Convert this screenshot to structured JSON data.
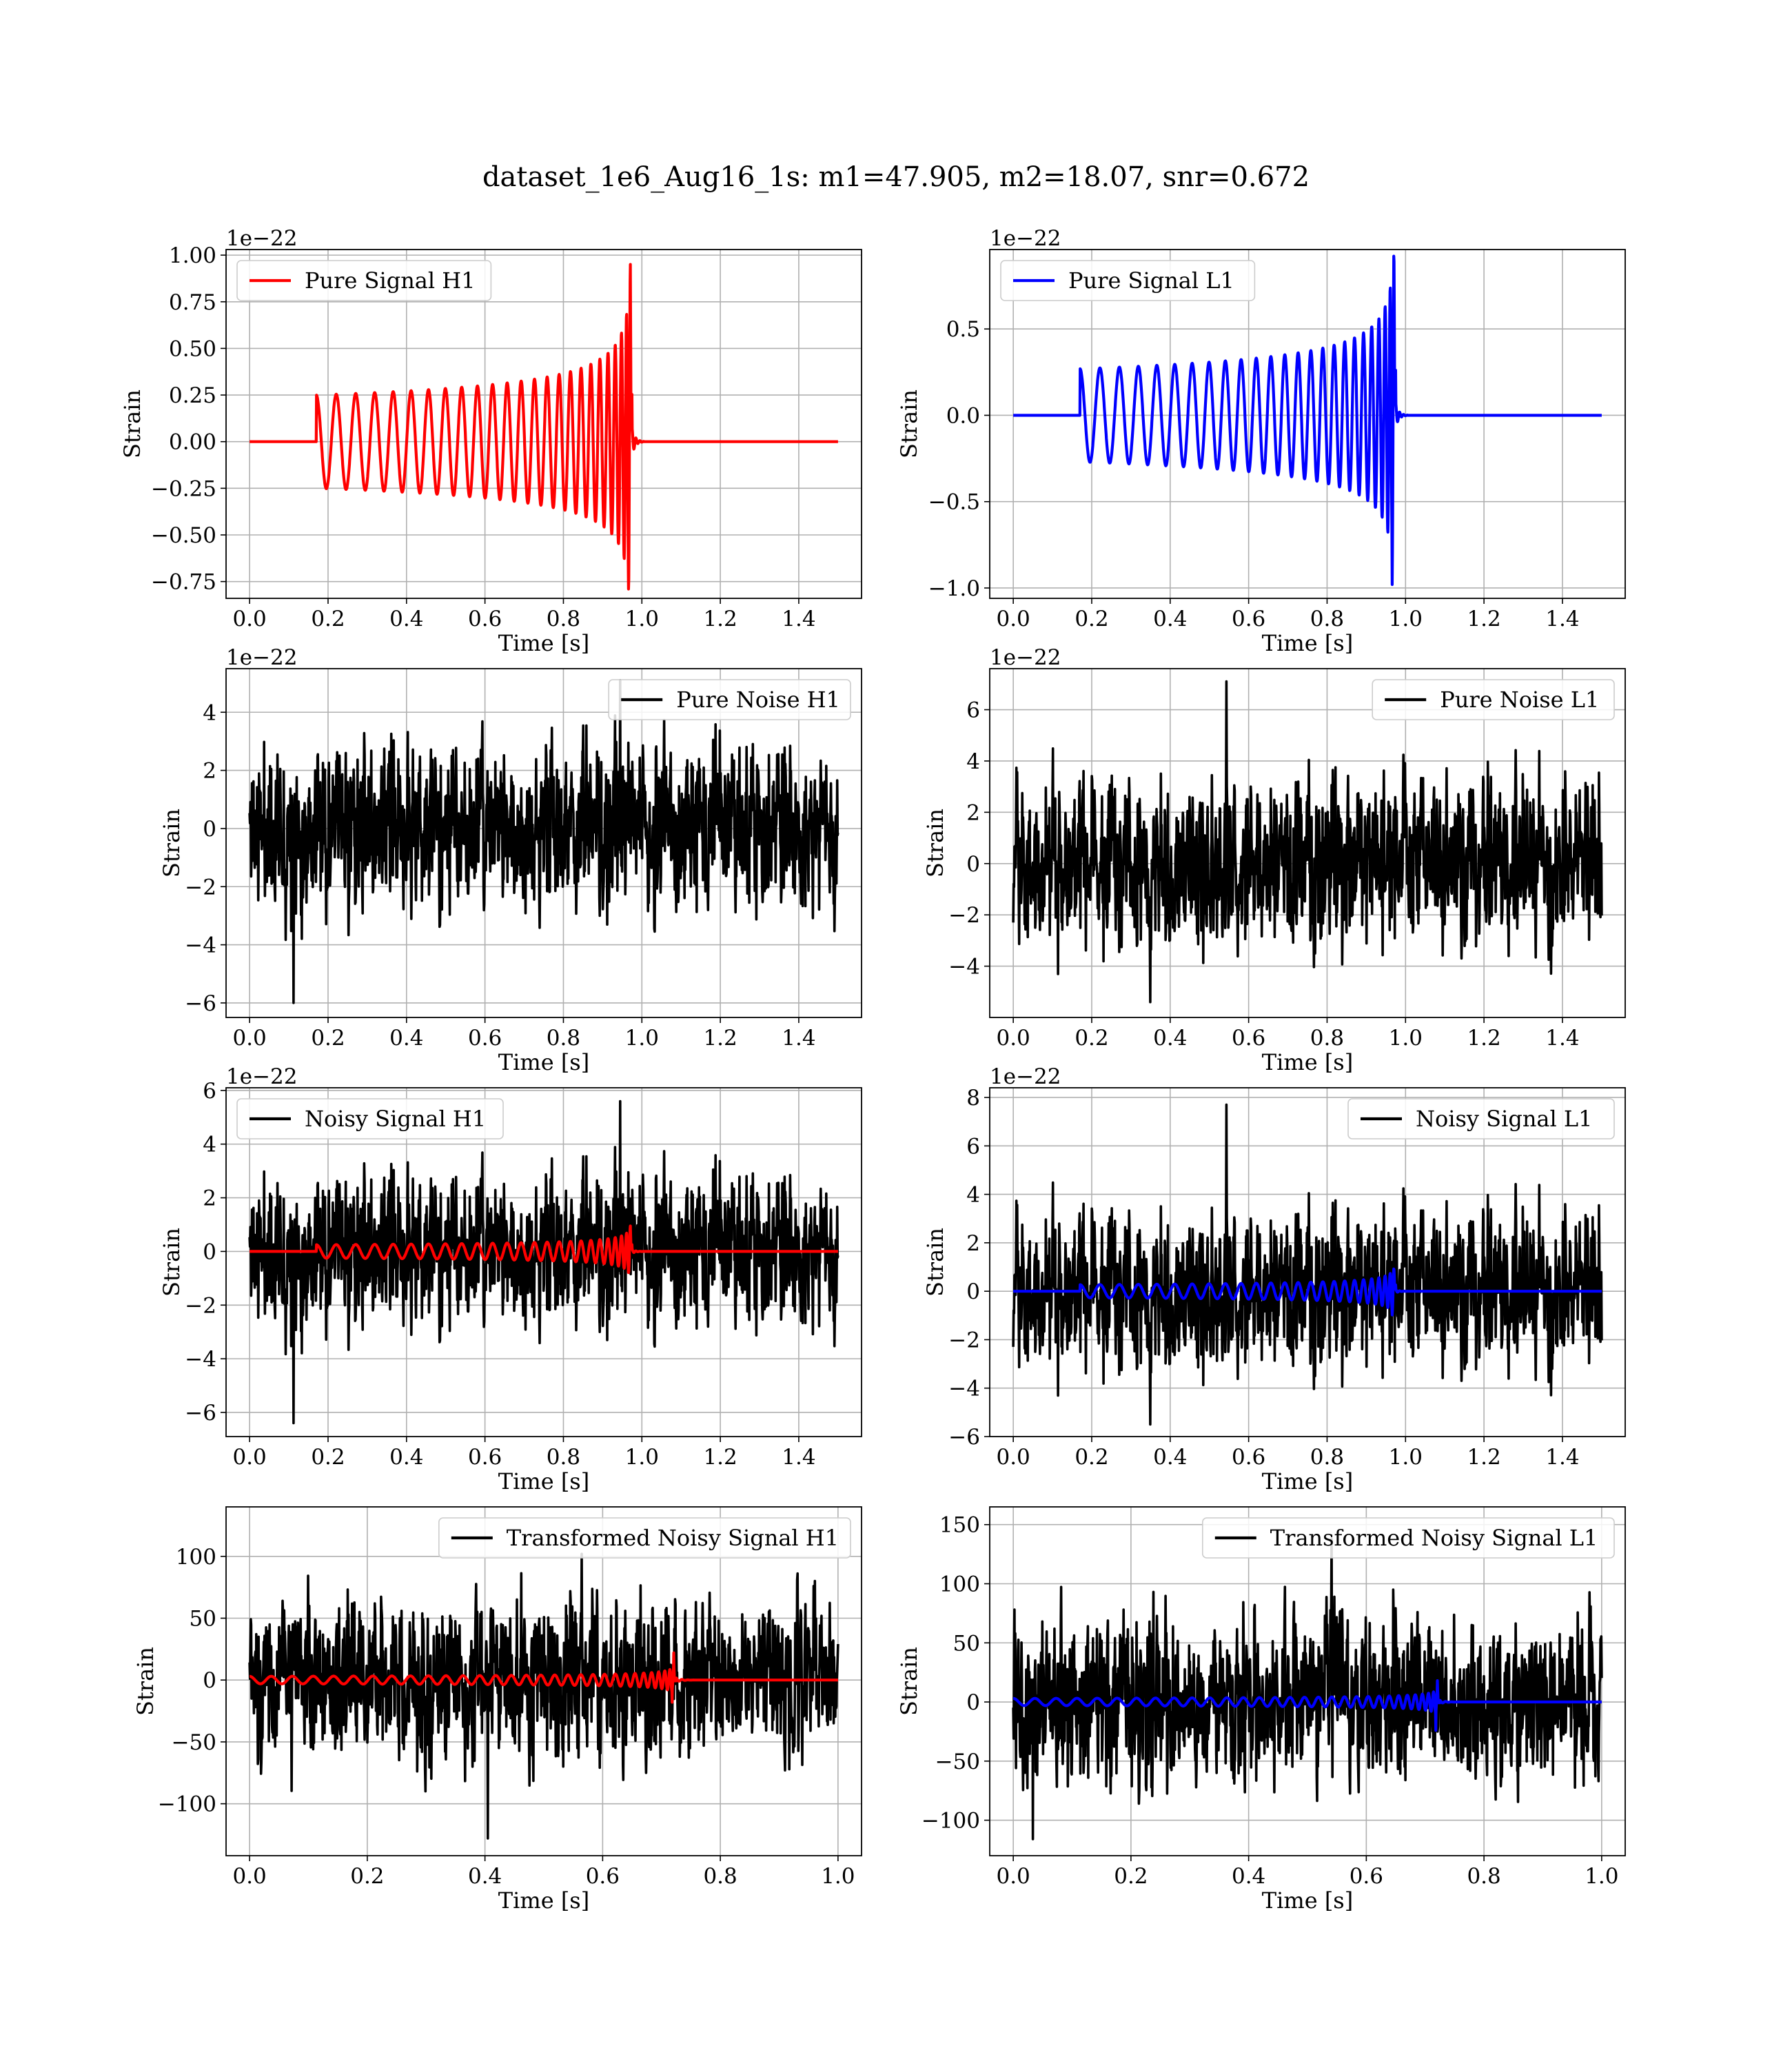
{
  "figure": {
    "title": "dataset_1e6_Aug16_1s: m1=47.905, m2=18.07, snr=0.672"
  },
  "colors": {
    "h1_signal": "#ff0000",
    "l1_signal": "#0000ff",
    "noise": "#000000",
    "grid": "#b0b0b0"
  },
  "chart_data": [
    {
      "id": "pure-signal-h1",
      "type": "line",
      "xlabel": "Time [s]",
      "ylabel": "Strain",
      "offset_text": "1e−22",
      "xlim": [
        -0.06,
        1.56
      ],
      "ylim": [
        -0.84,
        1.03
      ],
      "xticks": [
        0.0,
        0.2,
        0.4,
        0.6,
        0.8,
        1.0,
        1.2,
        1.4
      ],
      "xtick_labels": [
        "0.0",
        "0.2",
        "0.4",
        "0.6",
        "0.8",
        "1.0",
        "1.2",
        "1.4"
      ],
      "yticks": [
        -0.75,
        -0.5,
        -0.25,
        0.0,
        0.25,
        0.5,
        0.75,
        1.0
      ],
      "ytick_labels": [
        "−0.75",
        "−0.50",
        "−0.25",
        "0.00",
        "0.25",
        "0.50",
        "0.75",
        "1.00"
      ],
      "grid": true,
      "legend_position": "upper left",
      "series": [
        {
          "name": "Pure Signal H1",
          "color": "#ff0000",
          "kind": "chirp",
          "x_start": 0.0,
          "x_end": 1.5,
          "t_onset": 0.17,
          "t_merge": 0.975,
          "amp_start": 0.25,
          "amp_peak": 0.95,
          "amp_trough": -0.79,
          "cycles": 24
        }
      ]
    },
    {
      "id": "pure-signal-l1",
      "type": "line",
      "xlabel": "Time [s]",
      "ylabel": "Strain",
      "offset_text": "1e−22",
      "xlim": [
        -0.06,
        1.56
      ],
      "ylim": [
        -1.06,
        0.96
      ],
      "xticks": [
        0.0,
        0.2,
        0.4,
        0.6,
        0.8,
        1.0,
        1.2,
        1.4
      ],
      "xtick_labels": [
        "0.0",
        "0.2",
        "0.4",
        "0.6",
        "0.8",
        "1.0",
        "1.2",
        "1.4"
      ],
      "yticks": [
        -1.0,
        -0.5,
        0.0,
        0.5
      ],
      "ytick_labels": [
        "−1.0",
        "−0.5",
        "0.0",
        "0.5"
      ],
      "grid": true,
      "legend_position": "upper left",
      "series": [
        {
          "name": "Pure Signal L1",
          "color": "#0000ff",
          "kind": "chirp",
          "x_start": 0.0,
          "x_end": 1.5,
          "t_onset": 0.17,
          "t_merge": 0.975,
          "amp_start": 0.27,
          "amp_peak": 0.89,
          "amp_trough": -0.98,
          "cycles": 24
        }
      ]
    },
    {
      "id": "pure-noise-h1",
      "type": "line",
      "xlabel": "Time [s]",
      "ylabel": "Strain",
      "offset_text": "1e−22",
      "xlim": [
        -0.06,
        1.56
      ],
      "ylim": [
        -6.5,
        5.5
      ],
      "xticks": [
        0.0,
        0.2,
        0.4,
        0.6,
        0.8,
        1.0,
        1.2,
        1.4
      ],
      "xtick_labels": [
        "0.0",
        "0.2",
        "0.4",
        "0.6",
        "0.8",
        "1.0",
        "1.2",
        "1.4"
      ],
      "yticks": [
        -6,
        -4,
        -2,
        0,
        2,
        4
      ],
      "ytick_labels": [
        "−6",
        "−4",
        "−2",
        "0",
        "2",
        "4"
      ],
      "grid": true,
      "legend_position": "upper right",
      "series": [
        {
          "name": "Pure Noise H1",
          "color": "#000000",
          "kind": "noise",
          "x_start": 0.0,
          "x_end": 1.5,
          "sigma": 1.3,
          "y_min": -6.0,
          "y_max": 5.1,
          "seed": 11
        }
      ]
    },
    {
      "id": "pure-noise-l1",
      "type": "line",
      "xlabel": "Time [s]",
      "ylabel": "Strain",
      "offset_text": "1e−22",
      "xlim": [
        -0.06,
        1.56
      ],
      "ylim": [
        -6.0,
        7.6
      ],
      "xticks": [
        0.0,
        0.2,
        0.4,
        0.6,
        0.8,
        1.0,
        1.2,
        1.4
      ],
      "xtick_labels": [
        "0.0",
        "0.2",
        "0.4",
        "0.6",
        "0.8",
        "1.0",
        "1.2",
        "1.4"
      ],
      "yticks": [
        -4,
        -2,
        0,
        2,
        4,
        6
      ],
      "ytick_labels": [
        "−4",
        "−2",
        "0",
        "2",
        "4",
        "6"
      ],
      "grid": true,
      "legend_position": "upper right",
      "series": [
        {
          "name": "Pure Noise L1",
          "color": "#000000",
          "kind": "noise",
          "x_start": 0.0,
          "x_end": 1.5,
          "sigma": 1.5,
          "y_min": -5.4,
          "y_max": 7.1,
          "seed": 23
        }
      ]
    },
    {
      "id": "noisy-signal-h1",
      "type": "line",
      "xlabel": "Time [s]",
      "ylabel": "Strain",
      "offset_text": "1e−22",
      "xlim": [
        -0.06,
        1.56
      ],
      "ylim": [
        -6.9,
        6.1
      ],
      "xticks": [
        0.0,
        0.2,
        0.4,
        0.6,
        0.8,
        1.0,
        1.2,
        1.4
      ],
      "xtick_labels": [
        "0.0",
        "0.2",
        "0.4",
        "0.6",
        "0.8",
        "1.0",
        "1.2",
        "1.4"
      ],
      "yticks": [
        -6,
        -4,
        -2,
        0,
        2,
        4,
        6
      ],
      "ytick_labels": [
        "−6",
        "−4",
        "−2",
        "0",
        "2",
        "4",
        "6"
      ],
      "grid": true,
      "legend_position": "upper left",
      "series": [
        {
          "name": "Noisy Signal H1",
          "color": "#000000",
          "kind": "noise",
          "x_start": 0.0,
          "x_end": 1.5,
          "sigma": 1.3,
          "y_min": -6.4,
          "y_max": 5.6,
          "seed": 11
        },
        {
          "color": "#ff0000",
          "kind": "chirp",
          "x_start": 0.0,
          "x_end": 1.5,
          "t_onset": 0.17,
          "t_merge": 0.975,
          "amp_start": 0.25,
          "amp_peak": 0.95,
          "amp_trough": -0.79,
          "cycles": 24
        }
      ]
    },
    {
      "id": "noisy-signal-l1",
      "type": "line",
      "xlabel": "Time [s]",
      "ylabel": "Strain",
      "offset_text": "1e−22",
      "xlim": [
        -0.06,
        1.56
      ],
      "ylim": [
        -6.0,
        8.4
      ],
      "xticks": [
        0.0,
        0.2,
        0.4,
        0.6,
        0.8,
        1.0,
        1.2,
        1.4
      ],
      "xtick_labels": [
        "0.0",
        "0.2",
        "0.4",
        "0.6",
        "0.8",
        "1.0",
        "1.2",
        "1.4"
      ],
      "yticks": [
        -6,
        -4,
        -2,
        0,
        2,
        4,
        6,
        8
      ],
      "ytick_labels": [
        "−6",
        "−4",
        "−2",
        "0",
        "2",
        "4",
        "6",
        "8"
      ],
      "grid": true,
      "legend_position": "upper right",
      "series": [
        {
          "name": "Noisy Signal L1",
          "color": "#000000",
          "kind": "noise",
          "x_start": 0.0,
          "x_end": 1.5,
          "sigma": 1.5,
          "y_min": -5.5,
          "y_max": 7.7,
          "seed": 23
        },
        {
          "color": "#0000ff",
          "kind": "chirp",
          "x_start": 0.0,
          "x_end": 1.5,
          "t_onset": 0.17,
          "t_merge": 0.975,
          "amp_start": 0.27,
          "amp_peak": 0.89,
          "amp_trough": -0.98,
          "cycles": 24
        }
      ]
    },
    {
      "id": "transformed-noisy-signal-h1",
      "type": "line",
      "xlabel": "Time [s]",
      "ylabel": "Strain",
      "xlim": [
        -0.04,
        1.04
      ],
      "ylim": [
        -142,
        140
      ],
      "xticks": [
        0.0,
        0.2,
        0.4,
        0.6,
        0.8,
        1.0
      ],
      "xtick_labels": [
        "0.0",
        "0.2",
        "0.4",
        "0.6",
        "0.8",
        "1.0"
      ],
      "yticks": [
        -100,
        -50,
        0,
        50,
        100
      ],
      "ytick_labels": [
        "−100",
        "−50",
        "0",
        "50",
        "100"
      ],
      "grid": true,
      "legend_position": "upper right",
      "series": [
        {
          "name": "Transformed Noisy Signal H1",
          "color": "#000000",
          "kind": "noise",
          "x_start": 0.0,
          "x_end": 1.0,
          "sigma": 30,
          "y_min": -128,
          "y_max": 102,
          "seed": 37
        },
        {
          "color": "#ff0000",
          "kind": "chirp",
          "x_start": 0.0,
          "x_end": 1.0,
          "t_onset": 0.0,
          "t_merge": 0.725,
          "amp_start": 3,
          "amp_peak": 22,
          "amp_trough": -18,
          "cycles": 30
        }
      ]
    },
    {
      "id": "transformed-noisy-signal-l1",
      "type": "line",
      "xlabel": "Time [s]",
      "ylabel": "Strain",
      "xlim": [
        -0.04,
        1.04
      ],
      "ylim": [
        -130,
        165
      ],
      "xticks": [
        0.0,
        0.2,
        0.4,
        0.6,
        0.8,
        1.0
      ],
      "xtick_labels": [
        "0.0",
        "0.2",
        "0.4",
        "0.6",
        "0.8",
        "1.0"
      ],
      "yticks": [
        -100,
        -50,
        0,
        50,
        100,
        150
      ],
      "ytick_labels": [
        "−100",
        "−50",
        "0",
        "50",
        "100",
        "150"
      ],
      "grid": true,
      "legend_position": "upper right",
      "series": [
        {
          "name": "Transformed Noisy Signal L1",
          "color": "#000000",
          "kind": "noise",
          "x_start": 0.0,
          "x_end": 1.0,
          "sigma": 32,
          "y_min": -116,
          "y_max": 138,
          "seed": 53
        },
        {
          "color": "#0000ff",
          "kind": "chirp",
          "x_start": 0.0,
          "x_end": 1.0,
          "t_onset": 0.0,
          "t_merge": 0.725,
          "amp_start": 3,
          "amp_peak": 18,
          "amp_trough": -24,
          "cycles": 30
        }
      ]
    }
  ]
}
